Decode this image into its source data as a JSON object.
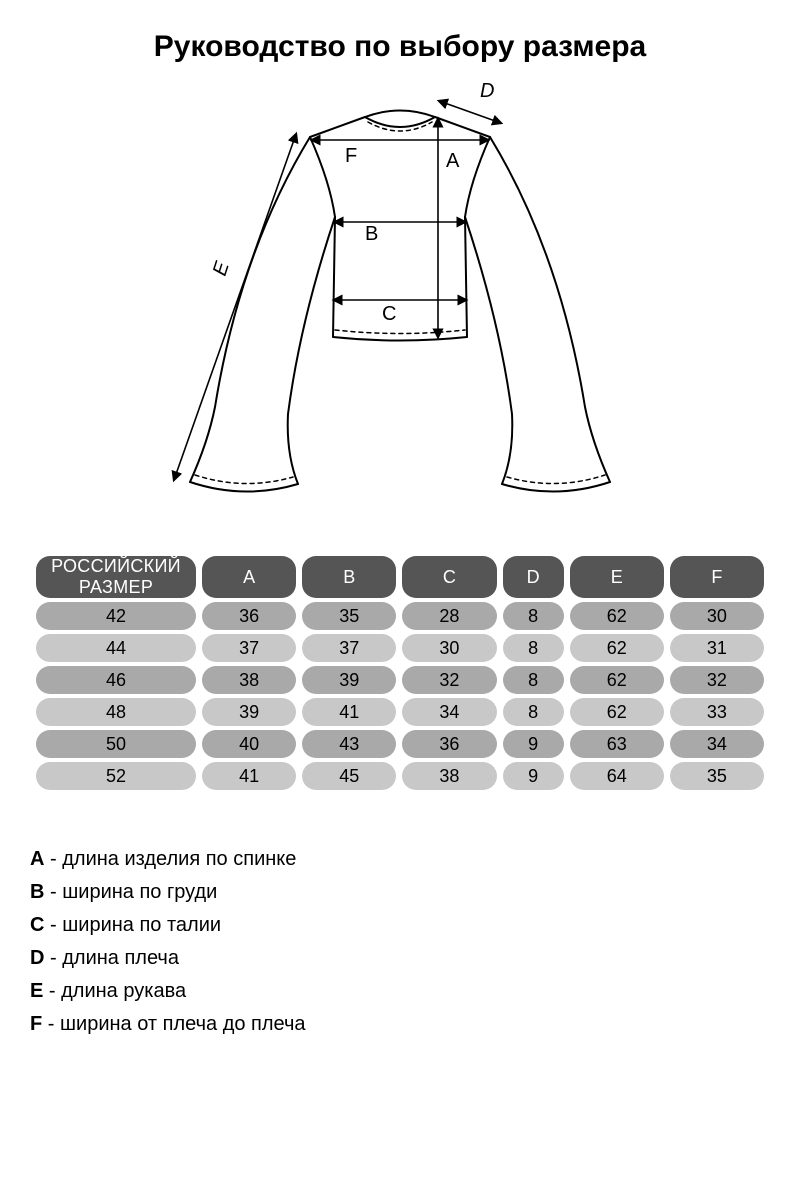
{
  "title": "Руководство по выбору размера",
  "diagram": {
    "stroke": "#000000",
    "stroke_width": 2,
    "dash_stroke": "#000000",
    "label_fontsize": 20,
    "labels": {
      "A": "A",
      "B": "B",
      "C": "C",
      "D": "D",
      "E": "E",
      "F": "F"
    }
  },
  "table": {
    "header_bg": "#555555",
    "header_fg": "#ffffff",
    "row_dark_bg": "#a9a9a9",
    "row_light_bg": "#c8c8c8",
    "size_header": "РОССИЙСКИЙ РАЗМЕР",
    "columns": [
      "A",
      "B",
      "C",
      "D",
      "E",
      "F"
    ],
    "rows": [
      {
        "size": "42",
        "vals": [
          "36",
          "35",
          "28",
          "8",
          "62",
          "30"
        ],
        "shade": "dark"
      },
      {
        "size": "44",
        "vals": [
          "37",
          "37",
          "30",
          "8",
          "62",
          "31"
        ],
        "shade": "light"
      },
      {
        "size": "46",
        "vals": [
          "38",
          "39",
          "32",
          "8",
          "62",
          "32"
        ],
        "shade": "dark"
      },
      {
        "size": "48",
        "vals": [
          "39",
          "41",
          "34",
          "8",
          "62",
          "33"
        ],
        "shade": "light"
      },
      {
        "size": "50",
        "vals": [
          "40",
          "43",
          "36",
          "9",
          "63",
          "34"
        ],
        "shade": "dark"
      },
      {
        "size": "52",
        "vals": [
          "41",
          "45",
          "38",
          "9",
          "64",
          "35"
        ],
        "shade": "light"
      }
    ]
  },
  "legend": [
    {
      "key": "A",
      "text": "длина изделия по спинке"
    },
    {
      "key": "B",
      "text": "ширина по груди"
    },
    {
      "key": "C",
      "text": "ширина по талии"
    },
    {
      "key": "D",
      "text": "длина плеча"
    },
    {
      "key": "E",
      "text": "длина рукава"
    },
    {
      "key": "F",
      "text": "ширина от плеча до плеча"
    }
  ]
}
